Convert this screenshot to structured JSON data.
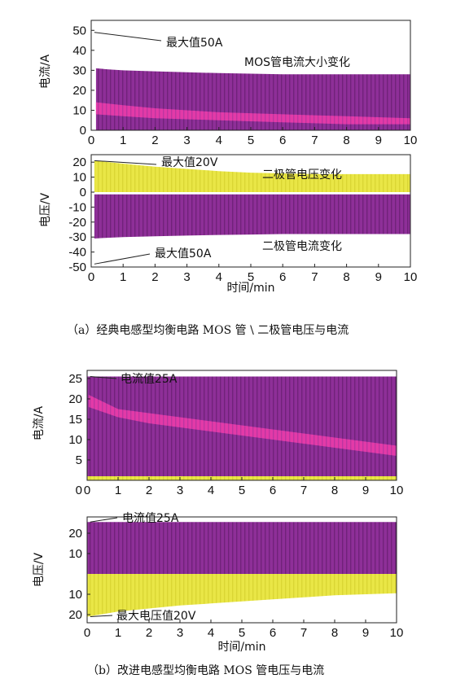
{
  "chart_data": [
    {
      "id": "a_top",
      "type": "area",
      "ylabel": "电流/A",
      "xlim": [
        0,
        10
      ],
      "ylim": [
        0,
        55
      ],
      "xticks": [
        0,
        1,
        2,
        3,
        4,
        5,
        6,
        7,
        8,
        9,
        10
      ],
      "yticks": [
        10,
        20,
        30,
        40,
        50
      ],
      "series": [
        {
          "name": "MOS管电流大小变化",
          "color": "#8e2f98",
          "x": [
            0.15,
            0.5,
            1,
            2,
            3,
            4,
            5,
            6,
            7,
            8,
            9,
            10
          ],
          "upper": [
            31,
            30.5,
            30,
            29.5,
            29,
            28.6,
            28.3,
            28,
            28,
            28,
            28,
            28
          ],
          "lower": [
            0,
            0,
            0,
            0,
            0,
            0,
            0,
            0,
            0,
            0,
            0,
            0
          ]
        },
        {
          "name": "",
          "color": "#e33aa8",
          "x": [
            0.15,
            1,
            2,
            3,
            4,
            5,
            6,
            7,
            8,
            9,
            10
          ],
          "upper": [
            14,
            12.5,
            11,
            10,
            9,
            8.5,
            8,
            7.5,
            7,
            6.5,
            6
          ],
          "lower": [
            8,
            7,
            6,
            5.5,
            5,
            4.5,
            4,
            3.5,
            3,
            3,
            3
          ]
        }
      ],
      "annotations": [
        {
          "text": "最大值50A",
          "x": 0.1,
          "y": 49
        },
        {
          "text": "MOS管电流大小变化",
          "x": 5.5,
          "y": 33
        }
      ]
    },
    {
      "id": "a_bottom",
      "type": "area",
      "xlabel": "时间/min",
      "ylabel": "电压/V",
      "xlim": [
        0,
        10
      ],
      "ylim": [
        -50,
        25
      ],
      "xticks": [
        0,
        1,
        2,
        3,
        4,
        5,
        6,
        7,
        8,
        9,
        10
      ],
      "yticks": [
        20,
        10,
        0,
        -10,
        -20,
        -30,
        -40,
        -50
      ],
      "series": [
        {
          "name": "二极管电压变化",
          "color": "#e9e646",
          "x": [
            0.1,
            1,
            2,
            3,
            4,
            5,
            6,
            7,
            8,
            9,
            10
          ],
          "upper": [
            21,
            19,
            17,
            15.5,
            14,
            13,
            12.5,
            12,
            12,
            12,
            12
          ],
          "lower": [
            0,
            0,
            0,
            0,
            0,
            0,
            0,
            0,
            0,
            0,
            0
          ]
        },
        {
          "name": "二极管电流变化",
          "color": "#8e2f98",
          "x": [
            0.1,
            0.5,
            1,
            2,
            3,
            4,
            5,
            6,
            7,
            8,
            9,
            10
          ],
          "upper": [
            -1.5,
            -1.5,
            -1.5,
            -1.5,
            -1.5,
            -1.5,
            -1.5,
            -1.5,
            -1.5,
            -1.5,
            -1.5,
            -1.5
          ],
          "lower": [
            -31,
            -30.5,
            -30,
            -29.5,
            -29,
            -28.6,
            -28.3,
            -28,
            -28,
            -28,
            -28,
            -28
          ]
        }
      ],
      "annotations": [
        {
          "text": "最大值20V",
          "x": 0.1,
          "y": 21
        },
        {
          "text": "二极管电压变化",
          "x": 6.3,
          "y": 16
        },
        {
          "text": "二极管电流变化",
          "x": 6.3,
          "y": -35
        },
        {
          "text": "最大值50A",
          "x": 0.1,
          "y": -48
        }
      ]
    },
    {
      "id": "b_top",
      "type": "area",
      "ylabel": "电流/A",
      "xlim": [
        0,
        10
      ],
      "ylim": [
        0,
        27
      ],
      "xticks": [
        0,
        1,
        2,
        3,
        4,
        5,
        6,
        7,
        8,
        9,
        10
      ],
      "yticks": [
        5,
        10,
        15,
        20,
        25
      ],
      "series": [
        {
          "name": "",
          "color": "#8e2f98",
          "x": [
            0,
            10
          ],
          "upper": [
            25.5,
            25.5
          ],
          "lower": [
            1,
            1
          ]
        },
        {
          "name": "",
          "color": "#e9e646",
          "x": [
            0,
            10
          ],
          "upper": [
            1,
            1
          ],
          "lower": [
            0,
            0
          ]
        },
        {
          "name": "",
          "color": "#e33aa8",
          "x": [
            0.05,
            1,
            2,
            3,
            4,
            5,
            6,
            7,
            8,
            9,
            10
          ],
          "upper": [
            21,
            17.5,
            16.5,
            15.5,
            14.5,
            13.5,
            12.5,
            11.5,
            10.5,
            9.5,
            8.5
          ],
          "lower": [
            18,
            15.5,
            14,
            13,
            12,
            11,
            10,
            9,
            8,
            7,
            6
          ]
        }
      ],
      "annotations": [
        {
          "text": "电流值25A",
          "x": 0.1,
          "y": 25.5
        }
      ]
    },
    {
      "id": "b_bottom",
      "type": "area",
      "xlabel": "时间/min",
      "ylabel": "电压/V",
      "xlim": [
        0,
        10
      ],
      "ylim": [
        -24,
        28
      ],
      "xticks": [
        0,
        1,
        2,
        3,
        4,
        5,
        6,
        7,
        8,
        9,
        10
      ],
      "ytick_values": [
        20,
        10,
        -10,
        -20
      ],
      "ytick_labels": [
        "20",
        "10",
        "10",
        "20"
      ],
      "series": [
        {
          "name": "",
          "color": "#8e2f98",
          "x": [
            0,
            10
          ],
          "upper": [
            25.5,
            25.5
          ],
          "lower": [
            0,
            0
          ]
        },
        {
          "name": "",
          "color": "#e9e646",
          "x": [
            0,
            1,
            2,
            3,
            4,
            5,
            6,
            7,
            8,
            9,
            10
          ],
          "upper": [
            0,
            0,
            0,
            0,
            0,
            0,
            0,
            0,
            0,
            0,
            0
          ],
          "lower": [
            -21,
            -18.5,
            -17,
            -15.5,
            -14.5,
            -13.5,
            -12.5,
            -11.5,
            -10.5,
            -10,
            -9.5
          ]
        }
      ],
      "annotations": [
        {
          "text": "电流值25A",
          "x": 0.1,
          "y": 25.5
        },
        {
          "text": "最大电压值20V",
          "x": 0.1,
          "y": -21
        }
      ]
    }
  ],
  "captions": {
    "a": "（a）经典电感型均衡电路 MOS 管 \\ 二极管电压与电流",
    "b": "（b）改进电感型均衡电路 MOS 管电压与电流"
  }
}
